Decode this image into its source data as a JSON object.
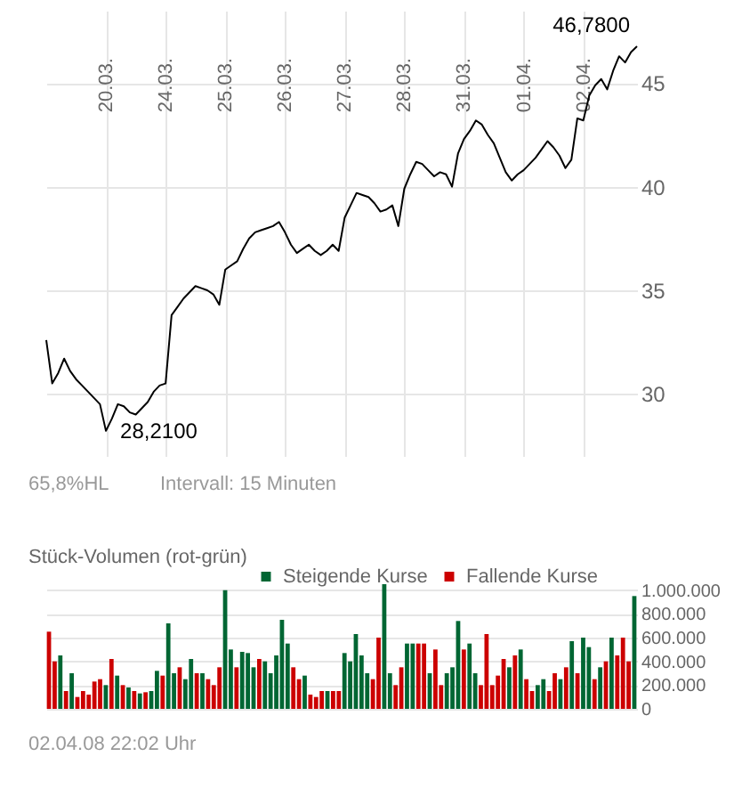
{
  "chart_data": [
    {
      "type": "line",
      "color": "#000000",
      "line_style": "solid",
      "marker": "none",
      "grid": true,
      "categories": [
        null,
        null,
        null,
        null,
        null,
        null,
        null,
        null,
        null,
        null,
        "20.03.",
        null,
        null,
        null,
        null,
        null,
        null,
        null,
        null,
        null,
        "24.03.",
        null,
        null,
        null,
        null,
        null,
        null,
        null,
        null,
        null,
        "25.03.",
        null,
        null,
        null,
        null,
        null,
        null,
        null,
        null,
        null,
        "26.03.",
        null,
        null,
        null,
        null,
        null,
        null,
        null,
        null,
        null,
        "27.03.",
        null,
        null,
        null,
        null,
        null,
        null,
        null,
        null,
        null,
        "28.03.",
        null,
        null,
        null,
        null,
        null,
        null,
        null,
        null,
        null,
        "31.03.",
        null,
        null,
        null,
        null,
        null,
        null,
        null,
        null,
        null,
        "01.04.",
        null,
        null,
        null,
        null,
        null,
        null,
        null,
        null,
        null,
        "02.04.",
        null,
        null,
        null,
        null,
        null,
        null,
        null,
        null,
        null
      ],
      "values": [
        32.6,
        30.5,
        31.0,
        31.7,
        31.1,
        30.7,
        30.4,
        30.1,
        29.8,
        29.5,
        28.21,
        28.8,
        29.5,
        29.4,
        29.1,
        29.0,
        29.3,
        29.6,
        30.1,
        30.4,
        30.5,
        33.8,
        34.2,
        34.6,
        34.9,
        35.2,
        35.1,
        35.0,
        34.8,
        34.3,
        36.0,
        36.2,
        36.4,
        37.0,
        37.5,
        37.8,
        37.9,
        38.0,
        38.1,
        38.3,
        37.8,
        37.2,
        36.8,
        37.0,
        37.2,
        36.9,
        36.7,
        36.9,
        37.2,
        36.9,
        38.5,
        39.1,
        39.7,
        39.6,
        39.5,
        39.2,
        38.8,
        38.9,
        39.1,
        38.1,
        39.9,
        40.6,
        41.2,
        41.1,
        40.8,
        40.5,
        40.7,
        40.6,
        40.0,
        41.6,
        42.3,
        42.7,
        43.2,
        43.0,
        42.5,
        42.1,
        41.4,
        40.7,
        40.3,
        40.6,
        40.8,
        41.1,
        41.4,
        41.8,
        42.2,
        41.9,
        41.5,
        40.9,
        41.3,
        43.3,
        43.2,
        44.4,
        44.9,
        45.2,
        44.7,
        45.6,
        46.3,
        46.0,
        46.5,
        46.78
      ],
      "ylim": [
        27,
        48.5
      ],
      "yticks": [
        30,
        35,
        40,
        45
      ],
      "annotations": [
        "28,2100",
        "46,7800",
        "65,8%HL",
        "Intervall: 15 Minuten"
      ]
    },
    {
      "type": "bar",
      "title": "Stück-Volumen (rot-grün)",
      "legend": "top",
      "grid": "y",
      "tick_labels": "y",
      "categories": [
        null,
        null,
        null,
        null,
        null,
        null,
        null,
        null,
        null,
        null,
        null,
        null,
        null,
        null,
        null,
        null,
        null,
        null,
        null,
        null,
        null,
        null,
        null,
        null,
        null,
        null,
        null,
        null,
        null,
        null,
        null,
        null,
        null,
        null,
        null,
        null,
        null,
        null,
        null,
        null,
        null,
        null,
        null,
        null,
        null,
        null,
        null,
        null,
        null,
        null,
        null,
        null,
        null,
        null,
        null,
        null,
        null,
        null,
        null,
        null,
        null,
        null,
        null,
        null,
        null,
        null,
        null,
        null,
        null,
        null,
        null,
        null,
        null,
        null,
        null,
        null,
        null,
        null,
        null,
        null,
        null,
        null,
        null,
        null,
        null,
        null,
        null,
        null,
        null,
        null,
        null,
        null,
        null,
        null,
        null,
        null,
        null,
        null,
        null,
        null,
        null,
        null,
        null,
        null
      ],
      "ylim": [
        0,
        1080000
      ],
      "yticks": [
        0,
        {
          "value": 200000,
          "label": "200.000"
        },
        {
          "value": 400000,
          "label": "400.000"
        },
        {
          "value": 600000,
          "label": "600.000"
        },
        {
          "value": 800000,
          "label": "800.000"
        },
        {
          "value": 1000000,
          "label": "1.000.000"
        }
      ],
      "series": [
        {
          "name": "Steigende Kurse",
          "color": "#006633",
          "values": [
            null,
            null,
            450000,
            null,
            300000,
            null,
            null,
            null,
            null,
            null,
            200000,
            null,
            280000,
            null,
            180000,
            null,
            130000,
            null,
            150000,
            320000,
            null,
            720000,
            300000,
            null,
            250000,
            420000,
            null,
            300000,
            null,
            null,
            null,
            1000000,
            500000,
            null,
            480000,
            470000,
            350000,
            null,
            400000,
            300000,
            450000,
            750000,
            550000,
            null,
            null,
            280000,
            null,
            null,
            null,
            150000,
            null,
            null,
            470000,
            400000,
            630000,
            450000,
            300000,
            null,
            null,
            1050000,
            300000,
            null,
            null,
            550000,
            550000,
            null,
            null,
            300000,
            null,
            null,
            300000,
            350000,
            740000,
            null,
            550000,
            300000,
            null,
            null,
            null,
            null,
            null,
            350000,
            null,
            500000,
            null,
            null,
            200000,
            250000,
            null,
            null,
            250000,
            null,
            570000,
            null,
            600000,
            520000,
            null,
            350000,
            null,
            600000,
            null,
            null,
            null,
            950000
          ]
        },
        {
          "name": "Fallende Kurse",
          "color": "#cc0000",
          "values": [
            650000,
            400000,
            null,
            150000,
            null,
            100000,
            150000,
            120000,
            230000,
            250000,
            null,
            420000,
            null,
            200000,
            null,
            150000,
            null,
            140000,
            null,
            null,
            280000,
            null,
            null,
            350000,
            null,
            null,
            300000,
            null,
            250000,
            200000,
            350000,
            null,
            null,
            350000,
            null,
            null,
            null,
            420000,
            null,
            null,
            null,
            null,
            null,
            350000,
            250000,
            null,
            120000,
            100000,
            150000,
            null,
            150000,
            150000,
            null,
            null,
            null,
            null,
            null,
            250000,
            600000,
            null,
            null,
            200000,
            350000,
            null,
            null,
            550000,
            550000,
            null,
            500000,
            200000,
            null,
            null,
            null,
            500000,
            null,
            null,
            200000,
            630000,
            200000,
            280000,
            420000,
            null,
            450000,
            null,
            250000,
            150000,
            null,
            null,
            150000,
            300000,
            null,
            350000,
            null,
            300000,
            null,
            null,
            250000,
            null,
            400000,
            null,
            450000,
            600000,
            400000,
            null
          ]
        }
      ],
      "annotations": [
        "02.04.08  22:02 Uhr"
      ]
    }
  ]
}
